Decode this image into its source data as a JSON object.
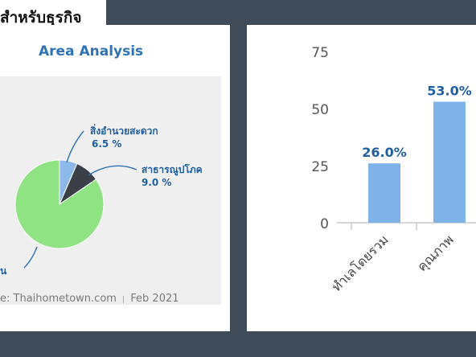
{
  "header": {
    "title": "สำหรับธุรกิจ"
  },
  "left_panel": {
    "title": "Area Analysis",
    "source": "e: Thaihometown.com",
    "separator": "|",
    "date": "Feb 2021"
  },
  "chart_data": [
    {
      "type": "pie",
      "title": "Area Analysis",
      "slices": [
        {
          "label": "สิ่งอำนวยสะดวก",
          "value": 6.5,
          "value_label": "6.5 %",
          "color": "#8db9e8"
        },
        {
          "label": "สาธารณูปโภค",
          "value": 9.0,
          "value_label": "9.0 %",
          "color": "#3b3f47"
        },
        {
          "label": "น",
          "value": 84.5,
          "value_label": "",
          "color": "#8fe382"
        }
      ]
    },
    {
      "type": "bar",
      "categories": [
        "ทำเลโดยรวม",
        "คุณภาพ"
      ],
      "values": [
        26.0,
        53.0
      ],
      "value_labels": [
        "26.0%",
        "53.0%"
      ],
      "ylim": [
        0,
        75
      ],
      "yticks": [
        "0",
        "25",
        "50",
        "75"
      ],
      "bar_color": "#7fb2e8",
      "label_color": "#1f5fa0",
      "grid": false
    }
  ]
}
